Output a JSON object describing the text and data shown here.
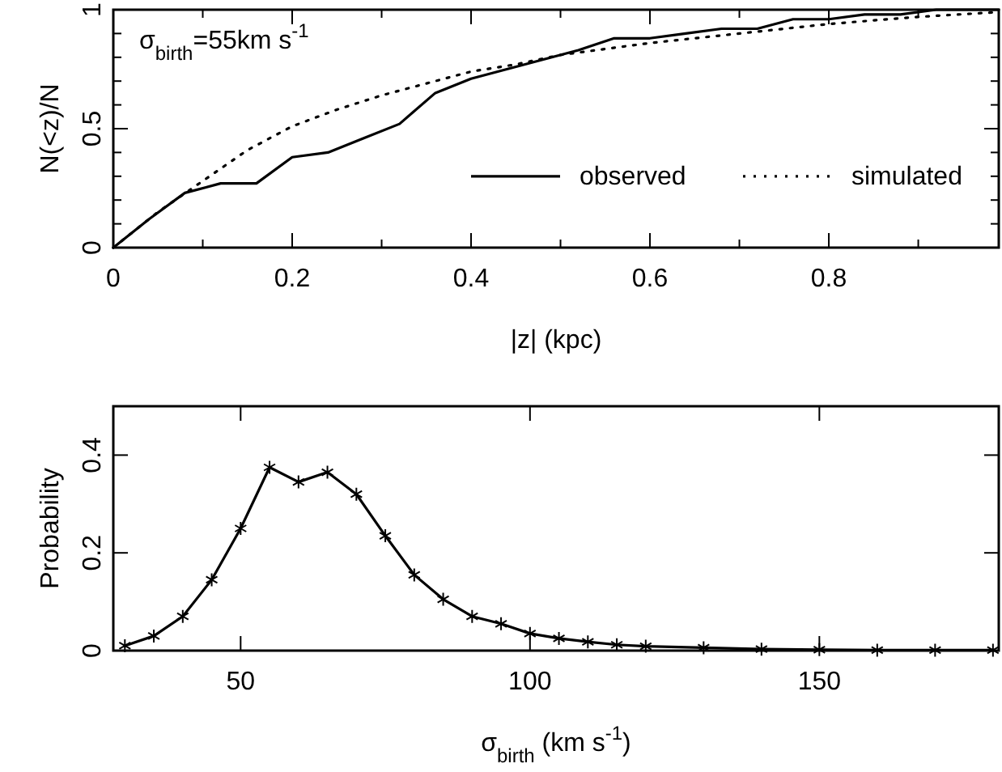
{
  "chart_data": [
    {
      "type": "line",
      "xlabel": "|z| (kpc)",
      "ylabel": "N(<z)/N",
      "annotations": [
        "σ$_{birth}$=55km s$^{-1}$"
      ],
      "xlim": [
        0,
        0.99
      ],
      "ylim": [
        0,
        1
      ],
      "xticks": [
        0,
        {
          "value": 0.1,
          "label": null
        },
        0.2,
        {
          "value": 0.3,
          "label": null
        },
        0.4,
        {
          "value": 0.5,
          "label": null
        },
        0.6,
        {
          "value": 0.7,
          "label": null
        },
        0.8,
        {
          "value": 0.9,
          "label": null
        }
      ],
      "yticks": [
        0,
        {
          "value": 0.1,
          "label": null
        },
        {
          "value": 0.2,
          "label": null
        },
        {
          "value": 0.3,
          "label": null
        },
        {
          "value": 0.4,
          "label": null
        },
        0.5,
        {
          "value": 0.6,
          "label": null
        },
        {
          "value": 0.7,
          "label": null
        },
        {
          "value": 0.8,
          "label": null
        },
        {
          "value": 0.9,
          "label": null
        },
        1
      ],
      "legend": "bottom right",
      "grid": false,
      "marker": "none",
      "series": [
        {
          "name": "observed",
          "color": "#000000",
          "line_style": "solid",
          "x": [
            0,
            0.04,
            0.08,
            0.12,
            0.16,
            0.2,
            0.24,
            0.28,
            0.32,
            0.36,
            0.4,
            0.44,
            0.48,
            0.52,
            0.56,
            0.6,
            0.64,
            0.68,
            0.72,
            0.76,
            0.8,
            0.84,
            0.88,
            0.92,
            0.99
          ],
          "values": [
            0,
            0.12,
            0.23,
            0.27,
            0.27,
            0.38,
            0.4,
            0.46,
            0.52,
            0.65,
            0.71,
            0.75,
            0.79,
            0.83,
            0.88,
            0.88,
            0.9,
            0.92,
            0.92,
            0.96,
            0.96,
            0.98,
            0.98,
            1,
            1
          ]
        },
        {
          "name": "simulated",
          "color": "#000000",
          "line_style": "dotted",
          "x": [
            0,
            0.05,
            0.1,
            0.15,
            0.2,
            0.25,
            0.3,
            0.35,
            0.4,
            0.45,
            0.5,
            0.6,
            0.7,
            0.8,
            0.9,
            0.99
          ],
          "values": [
            0,
            0.15,
            0.28,
            0.41,
            0.51,
            0.58,
            0.64,
            0.69,
            0.74,
            0.77,
            0.81,
            0.86,
            0.9,
            0.94,
            0.97,
            0.99
          ]
        }
      ]
    },
    {
      "type": "line",
      "xlabel": "σ$_{birth}$ (km s$^{-1}$)",
      "ylabel": "Probability",
      "xlim": [
        28,
        181
      ],
      "ylim": [
        0,
        0.5
      ],
      "xticks": [
        50,
        100,
        150
      ],
      "yticks": [
        0,
        0.2,
        0.4
      ],
      "legend": false,
      "grid": false,
      "marker": "cross",
      "series": [
        {
          "color": "#000000",
          "line_style": "solid",
          "x": [
            30,
            35,
            40,
            45,
            50,
            55,
            60,
            65,
            70,
            75,
            80,
            85,
            90,
            95,
            100,
            105,
            110,
            115,
            120,
            130,
            140,
            150,
            160,
            170,
            180
          ],
          "values": [
            0.01,
            0.03,
            0.07,
            0.145,
            0.25,
            0.375,
            0.345,
            0.365,
            0.32,
            0.235,
            0.155,
            0.105,
            0.07,
            0.055,
            0.035,
            0.025,
            0.018,
            0.012,
            0.009,
            0.006,
            0.003,
            0.002,
            0.001,
            0.001,
            0.001
          ]
        }
      ]
    }
  ]
}
